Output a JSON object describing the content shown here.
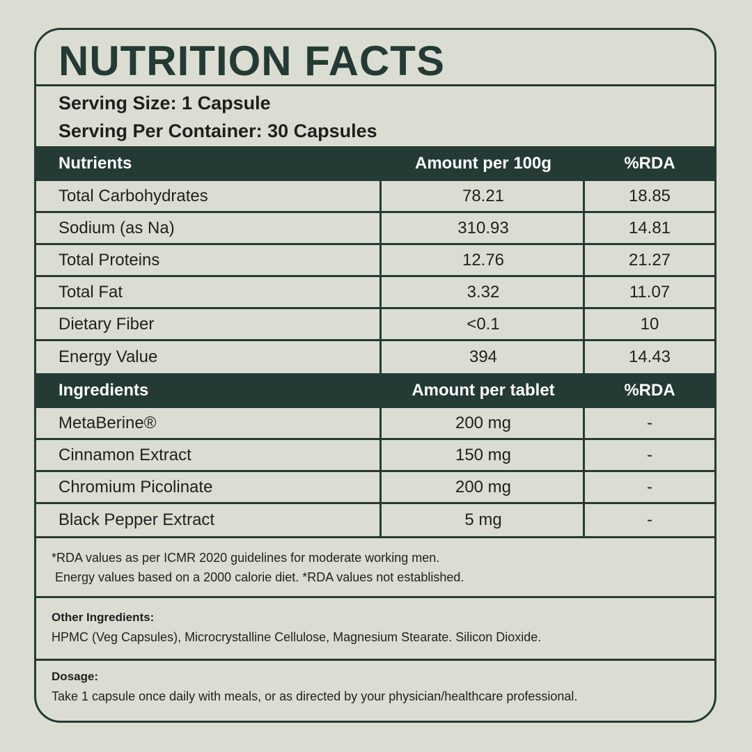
{
  "title": "NUTRITION FACTS",
  "serving_size": "Serving Size: 1 Capsule",
  "serving_per_container": "Serving Per Container: 30 Capsules",
  "nutrients_header": {
    "col1": "Nutrients",
    "col2": "Amount per 100g",
    "col3": "%RDA"
  },
  "nutrients": [
    {
      "name": "Total Carbohydrates",
      "amount": "78.21",
      "rda": "18.85"
    },
    {
      "name": "Sodium (as Na)",
      "amount": "310.93",
      "rda": "14.81"
    },
    {
      "name": "Total Proteins",
      "amount": "12.76",
      "rda": "21.27"
    },
    {
      "name": "Total Fat",
      "amount": "3.32",
      "rda": "11.07"
    },
    {
      "name": "Dietary Fiber",
      "amount": "<0.1",
      "rda": "10"
    },
    {
      "name": "Energy Value",
      "amount": "394",
      "rda": "14.43"
    }
  ],
  "ingredients_header": {
    "col1": "Ingredients",
    "col2": "Amount per tablet",
    "col3": "%RDA"
  },
  "ingredients": [
    {
      "name": "MetaBerine®",
      "amount": "200 mg",
      "rda": "-"
    },
    {
      "name": "Cinnamon Extract",
      "amount": "150 mg",
      "rda": "-"
    },
    {
      "name": "Chromium Picolinate",
      "amount": "200 mg",
      "rda": "-"
    },
    {
      "name": "Black Pepper Extract",
      "amount": "5 mg",
      "rda": "-"
    }
  ],
  "footnote_line1": "*RDA values as per ICMR 2020 guidelines for moderate working men.",
  "footnote_line2": "Energy values based on a 2000 calorie diet. *RDA values not established.",
  "other_ingredients_label": "Other Ingredients:",
  "other_ingredients_text": "HPMC (Veg Capsules), Microcrystalline Cellulose, Magnesium Stearate. Silicon Dioxide.",
  "dosage_label": "Dosage:",
  "dosage_text": "Take 1 capsule once daily with meals, or as directed by your physician/healthcare professional.",
  "colors": {
    "background": "#dcddd2",
    "accent": "#243a34",
    "header_text": "#ffffff",
    "body_text": "#1f1f1f"
  }
}
